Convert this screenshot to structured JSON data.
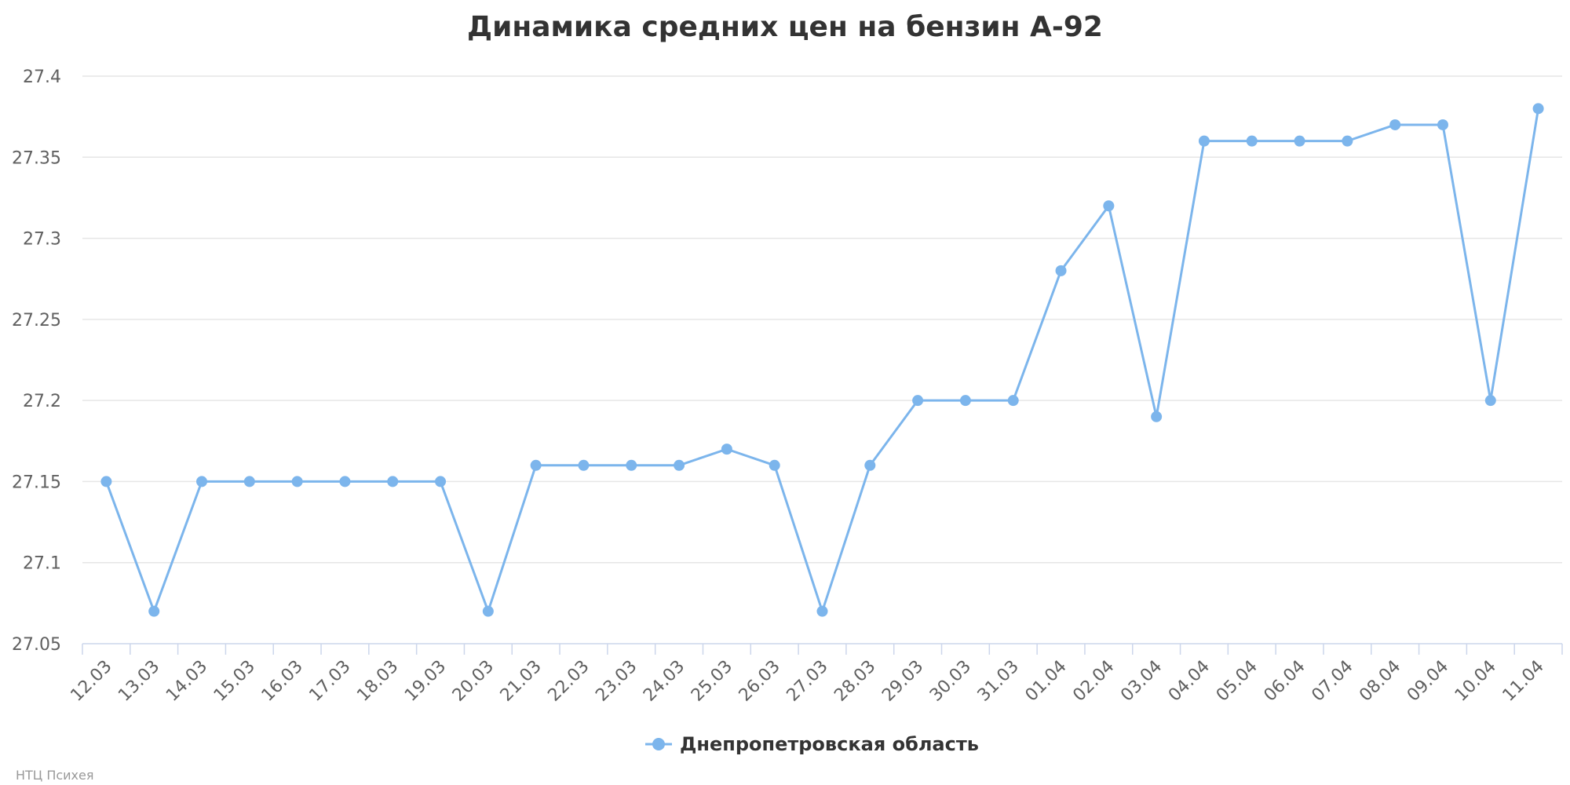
{
  "chart_data": {
    "type": "line",
    "title": "Динамика средних цен на бензин А-92",
    "xlabel": "",
    "ylabel": "",
    "categories": [
      "12.03",
      "13.03",
      "14.03",
      "15.03",
      "16.03",
      "17.03",
      "18.03",
      "19.03",
      "20.03",
      "21.03",
      "22.03",
      "23.03",
      "24.03",
      "25.03",
      "26.03",
      "27.03",
      "28.03",
      "29.03",
      "30.03",
      "31.03",
      "01.04",
      "02.04",
      "03.04",
      "04.04",
      "05.04",
      "06.04",
      "07.04",
      "08.04",
      "09.04",
      "10.04",
      "11.04"
    ],
    "series": [
      {
        "name": "Днепропетровская область",
        "color": "#7cb5ec",
        "values": [
          27.15,
          27.07,
          27.15,
          27.15,
          27.15,
          27.15,
          27.15,
          27.15,
          27.07,
          27.16,
          27.16,
          27.16,
          27.16,
          27.17,
          27.16,
          27.07,
          27.16,
          27.2,
          27.2,
          27.2,
          27.28,
          27.32,
          27.19,
          27.36,
          27.36,
          27.36,
          27.36,
          27.37,
          27.37,
          27.2,
          27.38
        ]
      }
    ],
    "ylim": [
      27.05,
      27.4
    ],
    "yticks": [
      "27.05",
      "27.1",
      "27.15",
      "27.2",
      "27.25",
      "27.3",
      "27.35",
      "27.4"
    ],
    "grid": true,
    "legend_position": "bottom-center"
  },
  "credits": "НТЦ Психея"
}
